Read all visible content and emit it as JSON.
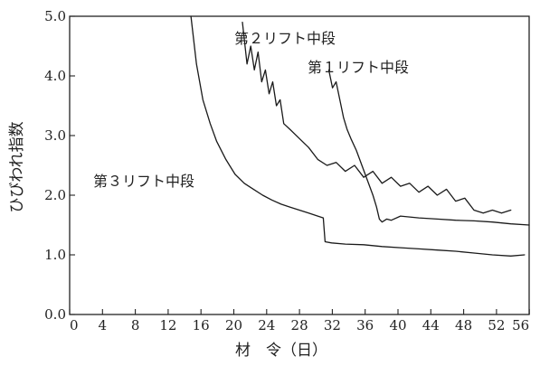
{
  "chart_data": {
    "type": "line",
    "xlabel": "材　令（日）",
    "ylabel": "ひびわれ指数",
    "xlim": [
      0,
      50
    ],
    "ylim": [
      0,
      5.0
    ],
    "x_ticks": [
      "0",
      "4",
      "8",
      "12",
      "16",
      "20",
      "24",
      "28",
      "32",
      "36",
      "40",
      "44",
      "48",
      "52",
      "56"
    ],
    "y_ticks": [
      "0.0",
      "1.0",
      "2.0",
      "3.0",
      "4.0",
      "5.0"
    ],
    "grid": false,
    "series": [
      {
        "name": "第３リフト中段",
        "x": [
          13.2,
          13.8,
          14.5,
          15.3,
          16,
          17,
          18,
          19,
          20,
          21,
          22,
          23,
          24,
          25,
          26,
          27,
          27.6,
          27.8,
          28.5,
          30,
          32,
          34,
          36,
          38,
          40,
          42,
          44,
          46,
          48,
          49.5
        ],
        "y": [
          5.0,
          4.2,
          3.6,
          3.2,
          2.9,
          2.6,
          2.35,
          2.2,
          2.1,
          2.0,
          1.92,
          1.85,
          1.8,
          1.75,
          1.7,
          1.65,
          1.62,
          1.22,
          1.2,
          1.18,
          1.17,
          1.14,
          1.12,
          1.1,
          1.08,
          1.06,
          1.03,
          1.0,
          0.98,
          1.0
        ]
      },
      {
        "name": "第２リフト中段",
        "x": [
          18.8,
          19.3,
          19.7,
          20.1,
          20.5,
          20.9,
          21.3,
          21.7,
          22.1,
          22.5,
          22.9,
          23.3,
          24,
          25,
          26,
          27,
          28,
          29,
          30,
          31,
          32,
          33,
          34,
          35,
          36,
          37,
          38,
          39,
          40,
          41,
          42,
          43,
          44,
          45,
          46,
          47,
          48
        ],
        "y": [
          4.9,
          4.2,
          4.5,
          4.1,
          4.4,
          3.9,
          4.1,
          3.7,
          3.9,
          3.5,
          3.6,
          3.2,
          3.1,
          2.95,
          2.8,
          2.6,
          2.5,
          2.55,
          2.4,
          2.5,
          2.3,
          2.4,
          2.2,
          2.3,
          2.15,
          2.2,
          2.05,
          2.15,
          2.0,
          2.1,
          1.9,
          1.95,
          1.75,
          1.7,
          1.75,
          1.7,
          1.75
        ]
      },
      {
        "name": "第１リフト中段",
        "x": [
          28.2,
          28.6,
          29,
          29.4,
          29.8,
          30.2,
          30.6,
          31.2,
          31.8,
          32.4,
          33,
          33.4,
          33.7,
          34,
          34.5,
          35,
          36,
          38,
          40,
          42,
          44,
          46,
          48,
          50
        ],
        "y": [
          4.1,
          3.8,
          3.9,
          3.6,
          3.3,
          3.1,
          2.95,
          2.75,
          2.5,
          2.25,
          2.0,
          1.8,
          1.6,
          1.55,
          1.6,
          1.58,
          1.65,
          1.62,
          1.6,
          1.58,
          1.57,
          1.55,
          1.52,
          1.5
        ]
      }
    ]
  }
}
